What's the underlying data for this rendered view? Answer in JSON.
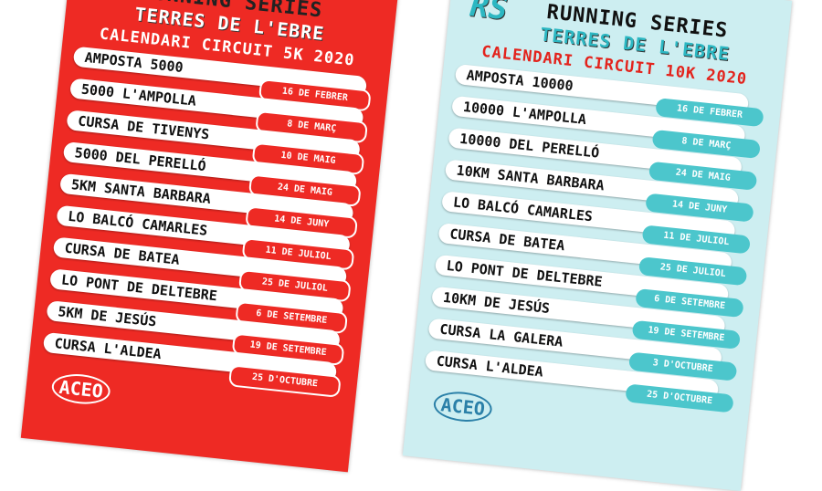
{
  "posters": [
    {
      "series": "RUNNING SERIES",
      "region": "TERRES DE L'EBRE",
      "subtitle": "CALENDARI CIRCUIT 5K 2020",
      "races": [
        {
          "name": "AMPOSTA 5000",
          "date": "16 DE FEBRER"
        },
        {
          "name": "5000 L'AMPOLLA",
          "date": "8 DE MARÇ"
        },
        {
          "name": "CURSA DE TIVENYS",
          "date": "10 DE MAIG"
        },
        {
          "name": "5000 DEL PERELLÓ",
          "date": "24 DE MAIG"
        },
        {
          "name": "5KM SANTA BARBARA",
          "date": "14 DE JUNY"
        },
        {
          "name": "LO BALCÓ CAMARLES",
          "date": "11 DE JULIOL"
        },
        {
          "name": "CURSA DE BATEA",
          "date": "25 DE JULIOL"
        },
        {
          "name": "LO PONT DE DELTEBRE",
          "date": "6 DE SETEMBRE"
        },
        {
          "name": "5KM DE JESÚS",
          "date": "19 DE SETEMBRE"
        },
        {
          "name": "CURSA L'ALDEA",
          "date": "25 D'OCTUBRE"
        }
      ],
      "logo": "ACEO"
    },
    {
      "badge": "RS",
      "series": "RUNNING SERIES",
      "region": "TERRES DE L'EBRE",
      "subtitle": "CALENDARI CIRCUIT 10K 2020",
      "races": [
        {
          "name": "AMPOSTA 10000",
          "date": "16 DE FEBRER"
        },
        {
          "name": "10000 L'AMPOLLA",
          "date": "8 DE MARÇ"
        },
        {
          "name": "10000 DEL PERELLÓ",
          "date": "24 DE MAIG"
        },
        {
          "name": "10KM SANTA BARBARA",
          "date": "14 DE JUNY"
        },
        {
          "name": "LO BALCÓ CAMARLES",
          "date": "11 DE JULIOL"
        },
        {
          "name": "CURSA DE BATEA",
          "date": "25 DE JULIOL"
        },
        {
          "name": "LO PONT DE DELTEBRE",
          "date": "6 DE SETEMBRE"
        },
        {
          "name": "10KM DE JESÚS",
          "date": "19 DE SETEMBRE"
        },
        {
          "name": "CURSA LA GALERA",
          "date": "3 D'OCTUBRE"
        },
        {
          "name": "CURSA L'ALDEA",
          "date": "25 D'OCTUBRE"
        }
      ],
      "logo": "ACEO"
    }
  ]
}
